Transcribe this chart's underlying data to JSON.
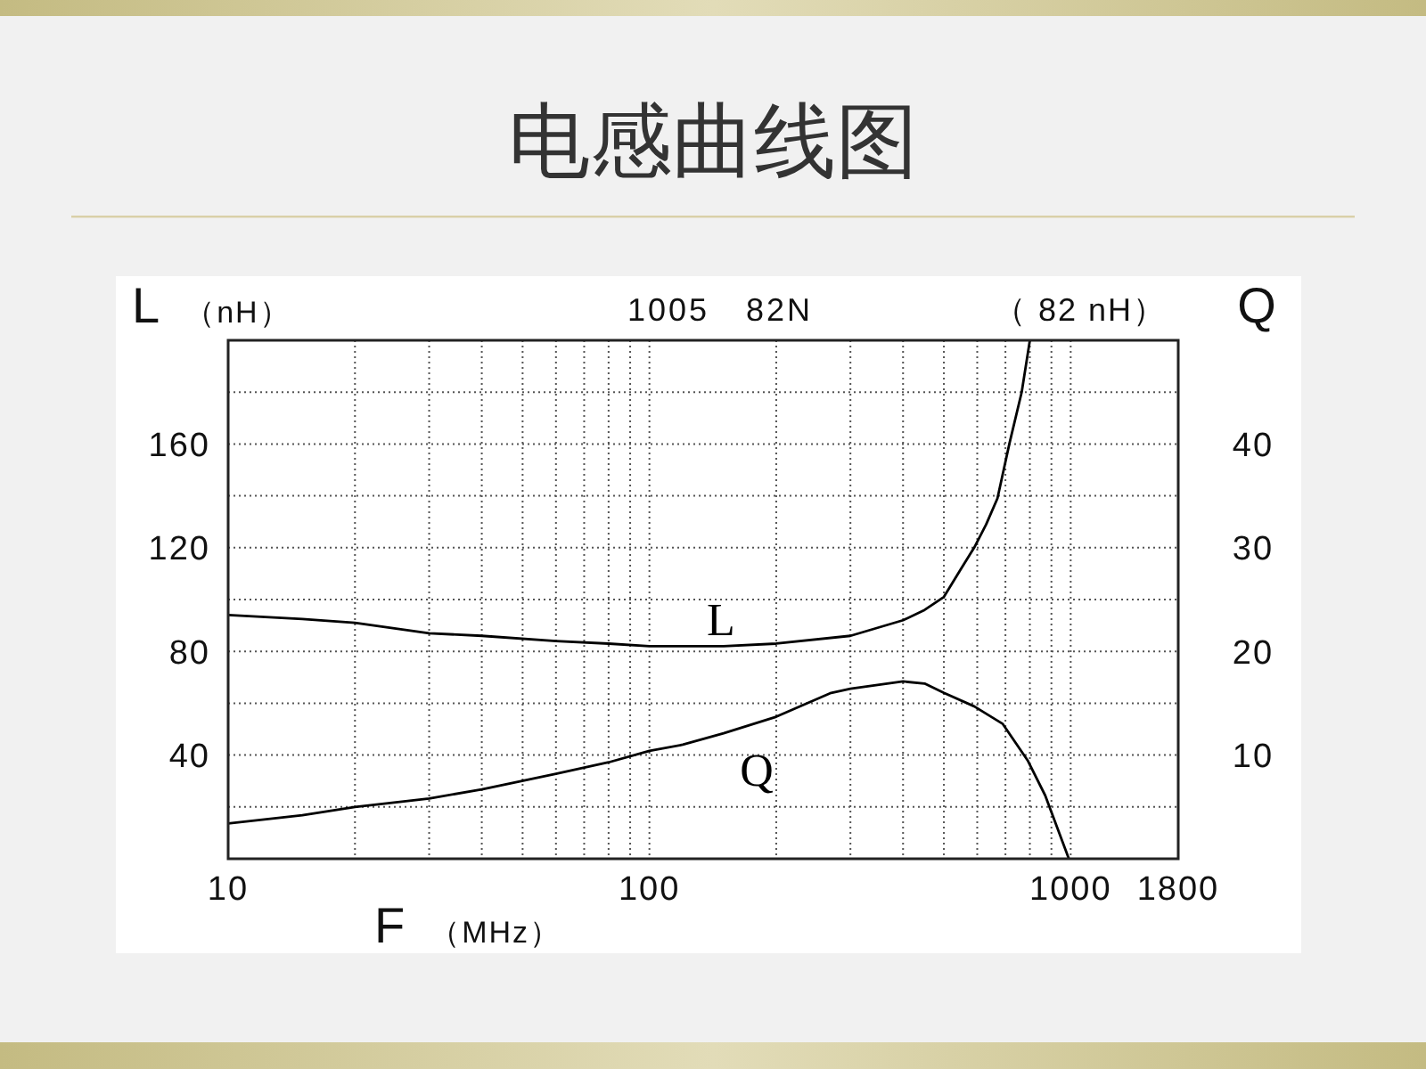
{
  "chart_data": {
    "type": "line",
    "title": "电感曲线图",
    "subtitle": "1005 82N",
    "annotations": [
      "（ 82 nH）"
    ],
    "xlabel": "F （MHz）",
    "ylabel": "L （nH）",
    "y2label": "Q",
    "log": "x",
    "grid": true,
    "xlim": [
      10,
      1800
    ],
    "xticks": [
      10,
      {
        "value": 20,
        "label": null
      },
      {
        "value": 30,
        "label": null
      },
      {
        "value": 40,
        "label": null
      },
      {
        "value": 50,
        "label": null
      },
      {
        "value": 60,
        "label": null
      },
      {
        "value": 70,
        "label": null
      },
      {
        "value": 80,
        "label": null
      },
      {
        "value": 90,
        "label": null
      },
      100,
      {
        "value": 200,
        "label": null
      },
      {
        "value": 300,
        "label": null
      },
      {
        "value": 400,
        "label": null
      },
      {
        "value": 500,
        "label": null
      },
      {
        "value": 600,
        "label": null
      },
      {
        "value": 700,
        "label": null
      },
      {
        "value": 800,
        "label": null
      },
      {
        "value": 900,
        "label": null
      },
      1000,
      1800
    ],
    "ylim": [
      0,
      200
    ],
    "yticks": [
      {
        "value": 20,
        "label": null
      },
      40,
      {
        "value": 60,
        "label": null
      },
      80,
      {
        "value": 100,
        "label": null
      },
      120,
      {
        "value": 140,
        "label": null
      },
      160,
      {
        "value": 180,
        "label": null
      }
    ],
    "y2lim": [
      0,
      50
    ],
    "y2ticks": [
      10,
      20,
      30,
      40
    ],
    "series": [
      {
        "name": "L",
        "color": "#000000",
        "x": [
          10,
          15,
          20,
          30,
          40,
          60,
          80,
          100,
          150,
          200,
          300,
          400,
          450,
          500,
          550,
          590,
          630,
          670,
          715,
          765,
          800
        ],
        "values": [
          94,
          92.5,
          91,
          87,
          86,
          84,
          83,
          82,
          82,
          83,
          86,
          92,
          96,
          101,
          112,
          120,
          129,
          139,
          160,
          180,
          200
        ]
      },
      {
        "name": "Q",
        "color": "#000000",
        "axis": "y2",
        "x": [
          10,
          15,
          20,
          30,
          40,
          60,
          80,
          100,
          120,
          150,
          200,
          270,
          300,
          400,
          450,
          500,
          590,
          690,
          790,
          870,
          990
        ],
        "values": [
          3.4,
          4.2,
          5.0,
          5.8,
          6.7,
          8.2,
          9.3,
          10.4,
          11.0,
          12.1,
          13.7,
          16.0,
          16.4,
          17.1,
          16.9,
          16.0,
          14.7,
          13.0,
          9.5,
          6.1,
          0
        ]
      }
    ]
  }
}
